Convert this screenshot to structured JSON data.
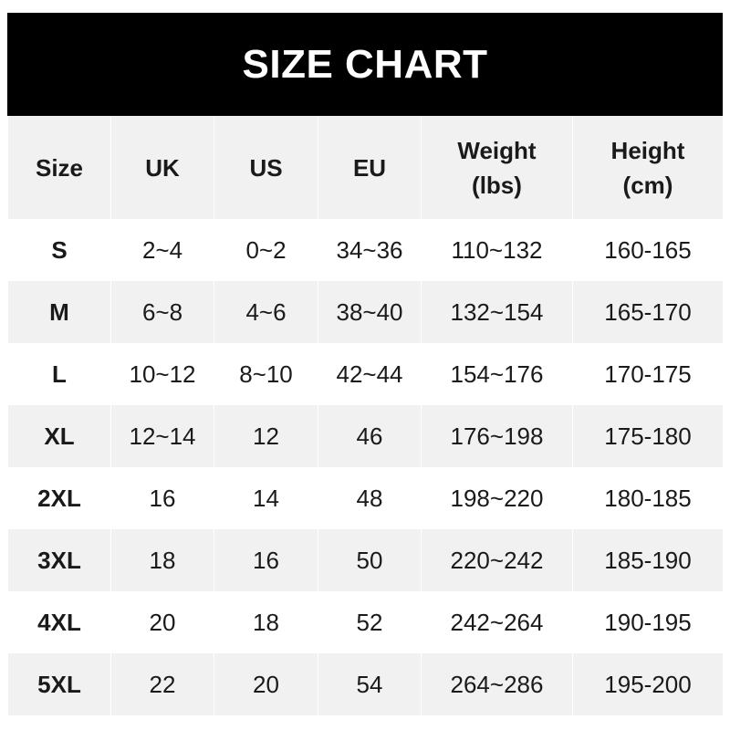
{
  "title": "SIZE CHART",
  "headers": [
    "Size",
    "UK",
    "US",
    "EU",
    "Weight\n(lbs)",
    "Height\n(cm)"
  ],
  "header_lines": [
    [
      "Size"
    ],
    [
      "UK"
    ],
    [
      "US"
    ],
    [
      "EU"
    ],
    [
      "Weight",
      "(lbs)"
    ],
    [
      "Height",
      "(cm)"
    ]
  ],
  "rows": [
    [
      "S",
      "2~4",
      "0~2",
      "34~36",
      "110~132",
      "160-165"
    ],
    [
      "M",
      "6~8",
      "4~6",
      "38~40",
      "132~154",
      "165-170"
    ],
    [
      "L",
      "10~12",
      "8~10",
      "42~44",
      "154~176",
      "170-175"
    ],
    [
      "XL",
      "12~14",
      "12",
      "46",
      "176~198",
      "175-180"
    ],
    [
      "2XL",
      "16",
      "14",
      "48",
      "198~220",
      "180-185"
    ],
    [
      "3XL",
      "18",
      "16",
      "50",
      "220~242",
      "185-190"
    ],
    [
      "4XL",
      "20",
      "18",
      "52",
      "242~264",
      "190-195"
    ],
    [
      "5XL",
      "22",
      "20",
      "54",
      "264~286",
      "195-200"
    ]
  ],
  "colors": {
    "title_bg": "#000000",
    "header_bg": "#f1f1f1",
    "stripe": "#f1f1f1"
  }
}
